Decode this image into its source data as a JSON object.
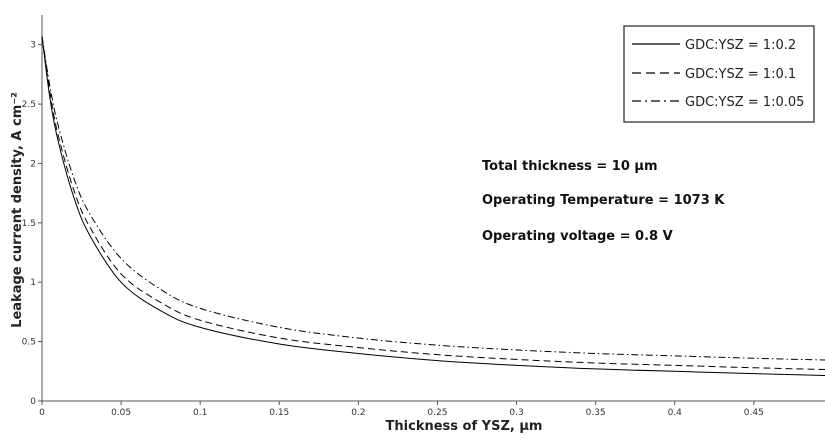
{
  "chart_data": {
    "type": "line",
    "xlabel": "Thickness of YSZ, μm",
    "ylabel": "Leakage current density, A cm⁻²",
    "xlim": [
      0,
      0.495
    ],
    "ylim": [
      0,
      3.25
    ],
    "x_ticks": [
      "0",
      "0.05",
      "0.1",
      "0.15",
      "0.2",
      "0.25",
      "0.3",
      "0.35",
      "0.4",
      "0.45"
    ],
    "x_tick_values": [
      0,
      0.05,
      0.1,
      0.15,
      0.2,
      0.25,
      0.3,
      0.35,
      0.4,
      0.45
    ],
    "y_ticks": [
      "0",
      "0.5",
      "1",
      "1.5",
      "2",
      "2.5",
      "3"
    ],
    "y_tick_values": [
      0,
      0.5,
      1,
      1.5,
      2,
      2.5,
      3
    ],
    "grid": false,
    "legend_position": "top-right",
    "annotations": [
      "Total thickness = 10 μm",
      "Operating Temperature = 1073 K",
      "Operating voltage = 0.8 V"
    ],
    "x": [
      0,
      0.005,
      0.01,
      0.02,
      0.03,
      0.05,
      0.075,
      0.1,
      0.15,
      0.2,
      0.25,
      0.3,
      0.35,
      0.4,
      0.45,
      0.495
    ],
    "series": [
      {
        "name": "GDC:YSZ = 1:0.2",
        "style": "solid",
        "values": [
          3.07,
          2.55,
          2.2,
          1.72,
          1.4,
          1.0,
          0.76,
          0.62,
          0.48,
          0.4,
          0.34,
          0.3,
          0.27,
          0.25,
          0.23,
          0.215
        ]
      },
      {
        "name": "GDC:YSZ = 1:0.1",
        "style": "dashed",
        "values": [
          3.07,
          2.6,
          2.25,
          1.78,
          1.47,
          1.07,
          0.83,
          0.68,
          0.53,
          0.45,
          0.39,
          0.35,
          0.32,
          0.3,
          0.28,
          0.265
        ]
      },
      {
        "name": "GDC:YSZ = 1:0.05",
        "style": "dashdot",
        "values": [
          3.07,
          2.65,
          2.33,
          1.88,
          1.58,
          1.2,
          0.94,
          0.78,
          0.62,
          0.53,
          0.47,
          0.43,
          0.4,
          0.38,
          0.36,
          0.345
        ]
      }
    ]
  },
  "colors": {
    "line": "#000000",
    "axis": "#555555"
  }
}
